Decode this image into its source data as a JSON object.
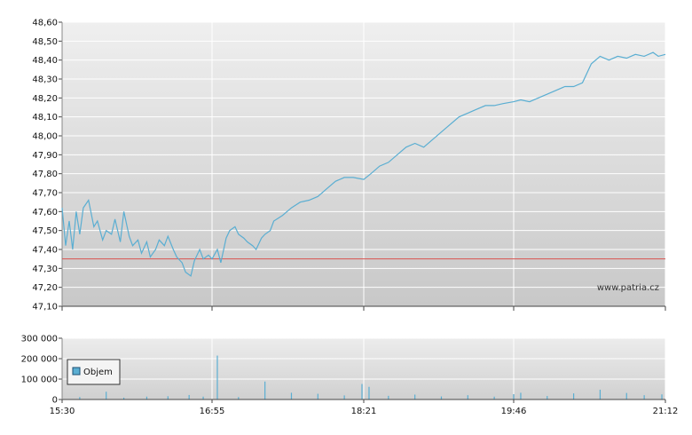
{
  "watermark": "www.patria.cz",
  "chart_data": [
    {
      "type": "line",
      "name": "price",
      "title": "",
      "xlabel": "",
      "ylabel": "",
      "ylim": [
        47.1,
        48.6
      ],
      "y_ticks": [
        "47,10",
        "47,20",
        "47,30",
        "47,40",
        "47,50",
        "47,60",
        "47,70",
        "47,80",
        "47,90",
        "48,00",
        "48,10",
        "48,20",
        "48,30",
        "48,40",
        "48,50",
        "48,60"
      ],
      "x_ticks": [
        "15:30",
        "16:55",
        "18:21",
        "19:46",
        "21:12"
      ],
      "grid": true,
      "reference_line": 47.35,
      "colors": {
        "series": "#5aaed2",
        "reference": "#d9534f"
      },
      "series": [
        {
          "x": [
            "15:30",
            "15:32",
            "15:34",
            "15:36",
            "15:38",
            "15:40",
            "15:42",
            "15:45",
            "15:48",
            "15:50",
            "15:53",
            "15:55",
            "15:58",
            "16:00",
            "16:03",
            "16:05",
            "16:08",
            "16:10",
            "16:13",
            "16:15",
            "16:18",
            "16:20",
            "16:23",
            "16:25",
            "16:28",
            "16:30",
            "16:33",
            "16:35",
            "16:38",
            "16:40",
            "16:43",
            "16:45",
            "16:48",
            "16:50",
            "16:53",
            "16:55",
            "16:58",
            "17:00",
            "17:03",
            "17:05",
            "17:08",
            "17:10",
            "17:13",
            "17:15",
            "17:18",
            "17:20",
            "17:23",
            "17:25",
            "17:28",
            "17:30",
            "17:35",
            "17:40",
            "17:45",
            "17:50",
            "17:55",
            "18:00",
            "18:05",
            "18:10",
            "18:15",
            "18:21",
            "18:25",
            "18:30",
            "18:35",
            "18:40",
            "18:45",
            "18:50",
            "18:55",
            "19:00",
            "19:05",
            "19:10",
            "19:15",
            "19:20",
            "19:25",
            "19:30",
            "19:35",
            "19:40",
            "19:46",
            "19:50",
            "19:55",
            "20:00",
            "20:05",
            "20:10",
            "20:15",
            "20:20",
            "20:25",
            "20:30",
            "20:35",
            "20:40",
            "20:45",
            "20:50",
            "20:55",
            "21:00",
            "21:05",
            "21:08",
            "21:12"
          ],
          "values": [
            47.62,
            47.42,
            47.55,
            47.4,
            47.6,
            47.48,
            47.62,
            47.66,
            47.52,
            47.55,
            47.45,
            47.5,
            47.48,
            47.56,
            47.44,
            47.6,
            47.47,
            47.42,
            47.45,
            47.38,
            47.44,
            47.36,
            47.4,
            47.45,
            47.42,
            47.47,
            47.4,
            47.36,
            47.33,
            47.28,
            47.26,
            47.34,
            47.4,
            47.35,
            47.37,
            47.35,
            47.4,
            47.33,
            47.46,
            47.5,
            47.52,
            47.48,
            47.46,
            47.44,
            47.42,
            47.4,
            47.46,
            47.48,
            47.5,
            47.55,
            47.58,
            47.62,
            47.65,
            47.66,
            47.68,
            47.72,
            47.76,
            47.78,
            47.78,
            47.77,
            47.8,
            47.84,
            47.86,
            47.9,
            47.94,
            47.96,
            47.94,
            47.98,
            48.02,
            48.06,
            48.1,
            48.12,
            48.14,
            48.16,
            48.16,
            48.17,
            48.18,
            48.19,
            48.18,
            48.2,
            48.22,
            48.24,
            48.26,
            48.26,
            48.28,
            48.38,
            48.42,
            48.4,
            48.42,
            48.41,
            48.43,
            48.42,
            48.44,
            48.42,
            48.43
          ]
        }
      ]
    },
    {
      "type": "bar",
      "name": "volume",
      "ylim": [
        0,
        300000
      ],
      "y_ticks": [
        "0",
        "100 000",
        "200 000",
        "300 000"
      ],
      "x_ticks": [
        "15:30",
        "16:55",
        "18:21",
        "19:46",
        "21:12"
      ],
      "legend": {
        "label": "Objem",
        "placement": "left"
      },
      "colors": {
        "series": "#5aaed2"
      },
      "series": [
        {
          "name": "Objem",
          "x": [
            "15:40",
            "15:55",
            "16:05",
            "16:18",
            "16:30",
            "16:42",
            "16:50",
            "16:58",
            "17:10",
            "17:25",
            "17:40",
            "17:55",
            "18:10",
            "18:20",
            "18:24",
            "18:35",
            "18:50",
            "19:05",
            "19:20",
            "19:35",
            "19:46",
            "19:50",
            "20:05",
            "20:20",
            "20:35",
            "20:50",
            "21:00",
            "21:10"
          ],
          "values": [
            12000,
            38000,
            9000,
            14000,
            16000,
            22000,
            14000,
            215000,
            12000,
            88000,
            33000,
            28000,
            20000,
            76000,
            62000,
            18000,
            24000,
            15000,
            21000,
            14000,
            26000,
            33000,
            17000,
            30000,
            48000,
            32000,
            21000,
            25000
          ]
        }
      ]
    }
  ]
}
